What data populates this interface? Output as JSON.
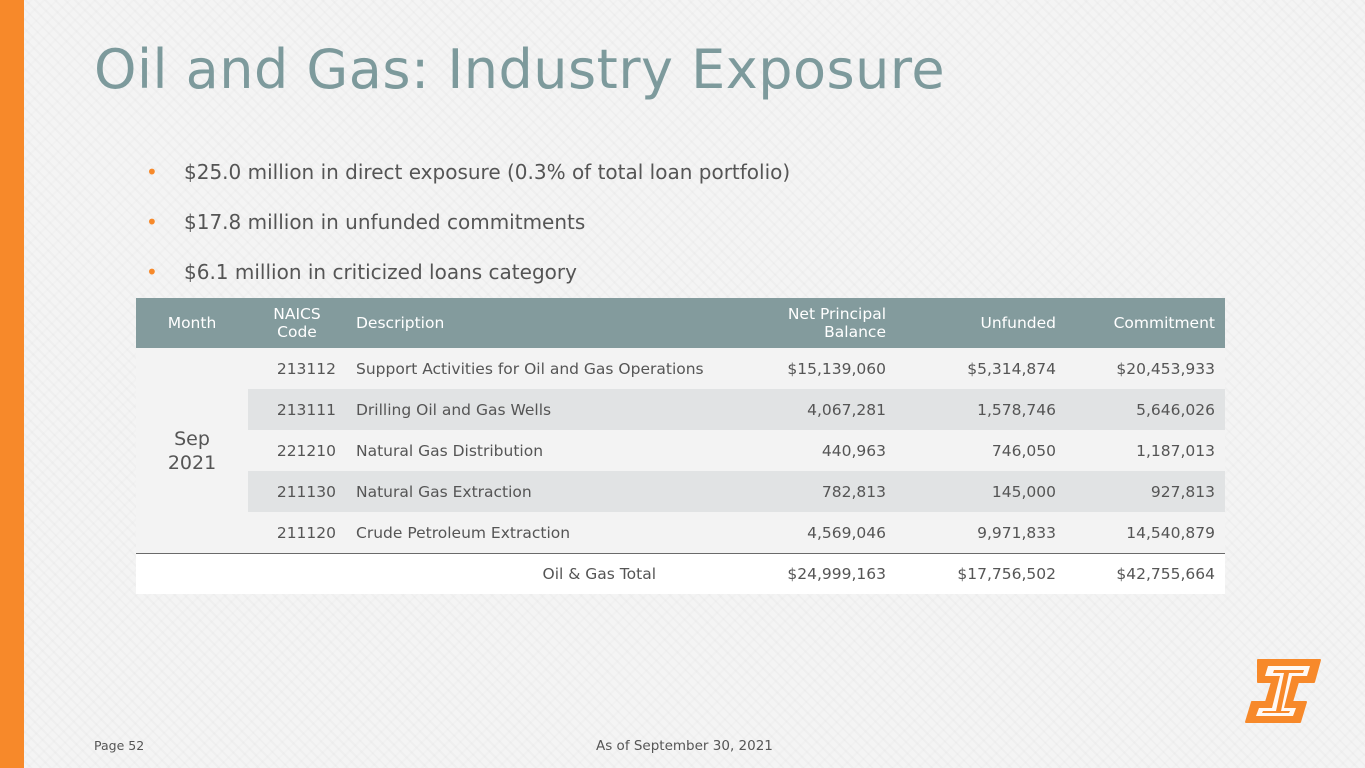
{
  "title": "Oil and Gas: Industry Exposure",
  "bullets": [
    "$25.0 million in direct exposure (0.3% of total loan portfolio)",
    "$17.8 million in unfunded commitments",
    "$6.1 million in criticized loans category"
  ],
  "bullet_glyph": "•",
  "table": {
    "headers": {
      "month": "Month",
      "naics_line1": "NAICS",
      "naics_line2": "Code",
      "description": "Description",
      "net_line1": "Net Principal",
      "net_line2": "Balance",
      "unfunded": "Unfunded",
      "commitment": "Commitment"
    },
    "month_line1": "Sep",
    "month_line2": "2021",
    "rows": [
      {
        "code": "213112",
        "description": "Support Activities for Oil and Gas Operations",
        "net": "$15,139,060",
        "unfunded": "$5,314,874",
        "commitment": "$20,453,933"
      },
      {
        "code": "213111",
        "description": "Drilling Oil and Gas Wells",
        "net": "4,067,281",
        "unfunded": "1,578,746",
        "commitment": "5,646,026"
      },
      {
        "code": "221210",
        "description": "Natural Gas Distribution",
        "net": "440,963",
        "unfunded": "746,050",
        "commitment": "1,187,013"
      },
      {
        "code": "211130",
        "description": "Natural Gas Extraction",
        "net": "782,813",
        "unfunded": "145,000",
        "commitment": "927,813"
      },
      {
        "code": "211120",
        "description": "Crude Petroleum Extraction",
        "net": "4,569,046",
        "unfunded": "9,971,833",
        "commitment": "14,540,879"
      }
    ],
    "total": {
      "label": "Oil & Gas Total",
      "net": "$24,999,163",
      "unfunded": "$17,756,502",
      "commitment": "$42,755,664"
    }
  },
  "footer": {
    "page": "Page 52",
    "as_of": "As of September 30, 2021"
  },
  "colors": {
    "accent_orange": "#f7892a",
    "title_teal": "#7d9a9c",
    "header_bg": "#839b9d"
  },
  "logo": {
    "icon": "company-logo-icon"
  }
}
